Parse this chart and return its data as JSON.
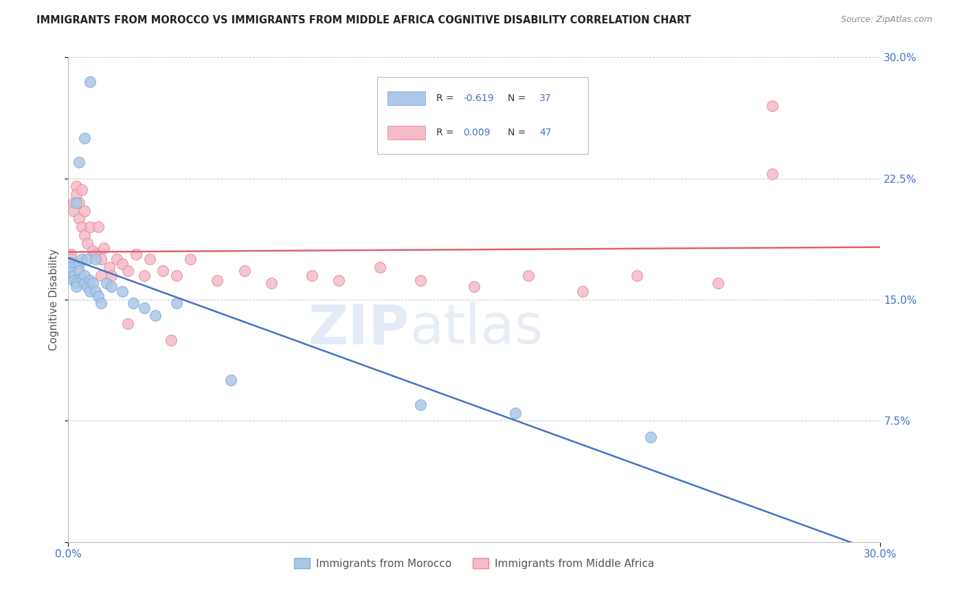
{
  "title": "IMMIGRANTS FROM MOROCCO VS IMMIGRANTS FROM MIDDLE AFRICA COGNITIVE DISABILITY CORRELATION CHART",
  "source": "Source: ZipAtlas.com",
  "ylabel": "Cognitive Disability",
  "xlim": [
    0.0,
    0.3
  ],
  "ylim": [
    0.0,
    0.3
  ],
  "grid_color": "#c8c8c8",
  "background_color": "#ffffff",
  "morocco_color": "#aec6e8",
  "morocco_edge": "#7aafd4",
  "middle_africa_color": "#f5bcc8",
  "middle_africa_edge": "#e88898",
  "R_morocco": -0.619,
  "N_morocco": 37,
  "R_middle_africa": 0.009,
  "N_middle_africa": 47,
  "legend_label_morocco": "Immigrants from Morocco",
  "legend_label_middle_africa": "Immigrants from Middle Africa",
  "watermark": "ZIPatlas",
  "line_morocco_color": "#4472c4",
  "line_middle_africa_color": "#e06070",
  "morocco_x": [
    0.001,
    0.001,
    0.001,
    0.002,
    0.002,
    0.003,
    0.003,
    0.004,
    0.004,
    0.005,
    0.005,
    0.006,
    0.006,
    0.007,
    0.007,
    0.008,
    0.008,
    0.009,
    0.01,
    0.011,
    0.012,
    0.014,
    0.016,
    0.02,
    0.024,
    0.028,
    0.032,
    0.04,
    0.003,
    0.004,
    0.006,
    0.008,
    0.06,
    0.13,
    0.165,
    0.215,
    0.01
  ],
  "morocco_y": [
    0.173,
    0.17,
    0.167,
    0.165,
    0.162,
    0.16,
    0.158,
    0.172,
    0.168,
    0.175,
    0.163,
    0.165,
    0.16,
    0.175,
    0.158,
    0.162,
    0.155,
    0.16,
    0.155,
    0.152,
    0.148,
    0.16,
    0.158,
    0.155,
    0.148,
    0.145,
    0.14,
    0.148,
    0.21,
    0.235,
    0.25,
    0.285,
    0.1,
    0.085,
    0.08,
    0.065,
    0.175
  ],
  "middle_africa_x": [
    0.001,
    0.001,
    0.002,
    0.002,
    0.003,
    0.003,
    0.004,
    0.004,
    0.005,
    0.005,
    0.006,
    0.006,
    0.007,
    0.008,
    0.009,
    0.01,
    0.011,
    0.012,
    0.013,
    0.015,
    0.016,
    0.018,
    0.02,
    0.022,
    0.025,
    0.028,
    0.03,
    0.035,
    0.04,
    0.045,
    0.055,
    0.065,
    0.075,
    0.09,
    0.1,
    0.115,
    0.13,
    0.15,
    0.17,
    0.19,
    0.21,
    0.24,
    0.26,
    0.038,
    0.012,
    0.022,
    0.26
  ],
  "middle_africa_y": [
    0.178,
    0.175,
    0.21,
    0.205,
    0.22,
    0.215,
    0.21,
    0.2,
    0.218,
    0.195,
    0.205,
    0.19,
    0.185,
    0.195,
    0.18,
    0.178,
    0.195,
    0.175,
    0.182,
    0.17,
    0.165,
    0.175,
    0.172,
    0.168,
    0.178,
    0.165,
    0.175,
    0.168,
    0.165,
    0.175,
    0.162,
    0.168,
    0.16,
    0.165,
    0.162,
    0.17,
    0.162,
    0.158,
    0.165,
    0.155,
    0.165,
    0.16,
    0.27,
    0.125,
    0.165,
    0.135,
    0.228
  ]
}
